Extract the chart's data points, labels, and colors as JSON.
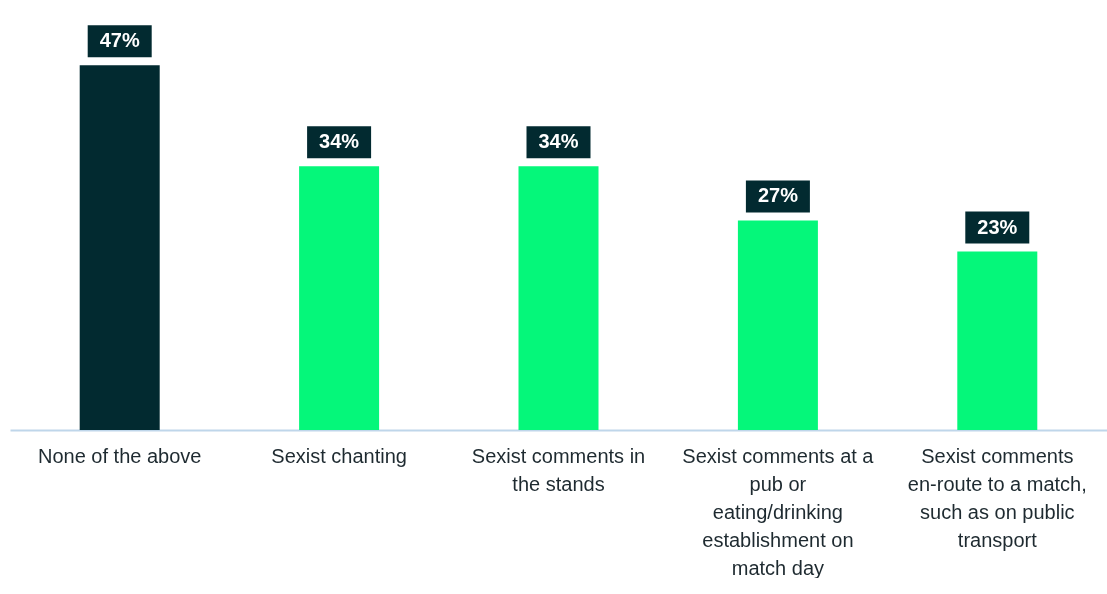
{
  "chart_data": {
    "type": "bar",
    "categories": [
      "None of the above",
      "Sexist chanting",
      "Sexist comments in the stands",
      "Sexist comments at a pub or eating/drinking establishment on match day",
      "Sexist comments en-route to a match, such as on public transport"
    ],
    "values": [
      47,
      34,
      34,
      27,
      23
    ],
    "colors": [
      "#022a30",
      "#05f77a",
      "#05f77a",
      "#05f77a",
      "#05f77a"
    ],
    "value_labels": [
      "47%",
      "34%",
      "34%",
      "27%",
      "23%"
    ]
  }
}
